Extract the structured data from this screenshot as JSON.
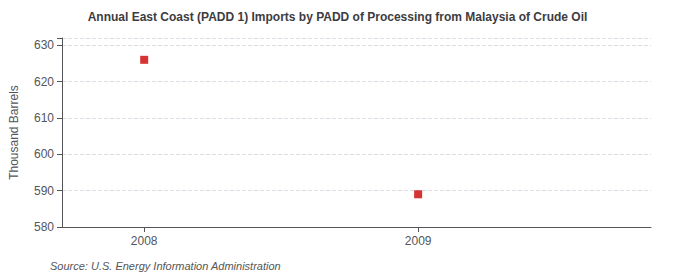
{
  "chart_data": {
    "type": "scatter",
    "title": "Annual East Coast (PADD 1) Imports by PADD of Processing from Malaysia of Crude Oil",
    "ylabel": "Thousand Barrels",
    "x": [
      2008,
      2009
    ],
    "values": [
      626,
      589
    ],
    "color": "#cc0000",
    "marker": "square",
    "xlim": [
      2007.7,
      2009.85
    ],
    "xticks": [
      2008,
      2009
    ],
    "ylim": [
      580,
      632
    ],
    "yticks": [
      580,
      590,
      600,
      610,
      620,
      630
    ],
    "grid": true,
    "annotation": "Source: U.S. Energy Information Administration"
  }
}
